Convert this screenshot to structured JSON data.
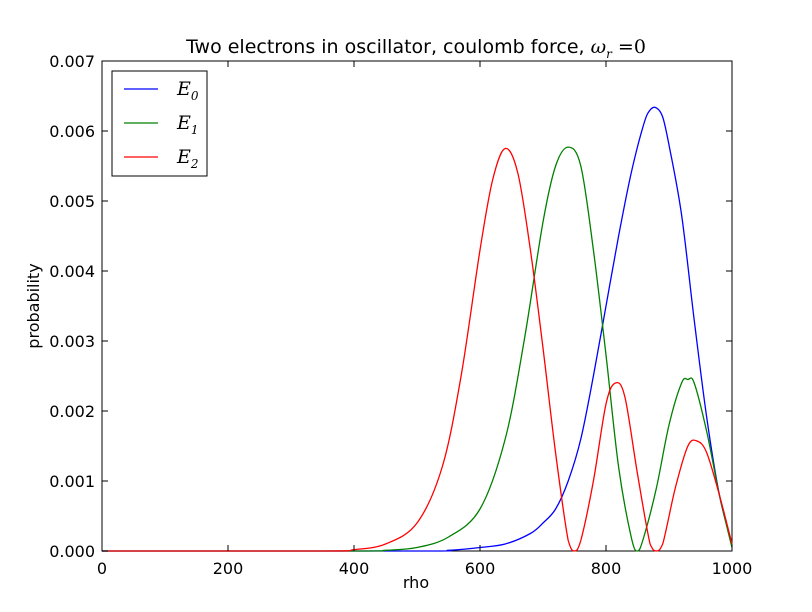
{
  "chart_data": {
    "type": "line",
    "title": "Two electrons in oscillator, coulomb force, ",
    "title_math": "ω",
    "title_math_sub": "r",
    "title_math_rest": " =0",
    "xlabel": "rho",
    "ylabel": "probability",
    "xlim": [
      0,
      1000
    ],
    "ylim": [
      0,
      0.007
    ],
    "xticks": [
      0,
      200,
      400,
      600,
      800,
      1000
    ],
    "xtick_labels": [
      "0",
      "200",
      "400",
      "600",
      "800",
      "1000"
    ],
    "yticks": [
      0,
      0.001,
      0.002,
      0.003,
      0.004,
      0.005,
      0.006,
      0.007
    ],
    "ytick_labels": [
      "0.000",
      "0.001",
      "0.002",
      "0.003",
      "0.004",
      "0.005",
      "0.006",
      "0.007"
    ],
    "grid": false,
    "legend_position": "top-left",
    "series": [
      {
        "name": "E",
        "sub": "0",
        "color": "#0000ff",
        "points": [
          [
            0,
            0
          ],
          [
            500,
            0
          ],
          [
            550,
            1e-05
          ],
          [
            580,
            3e-05
          ],
          [
            600,
            5e-05
          ],
          [
            640,
            0.0001
          ],
          [
            680,
            0.00025
          ],
          [
            700,
            0.0004
          ],
          [
            720,
            0.0006
          ],
          [
            740,
            0.001
          ],
          [
            760,
            0.0016
          ],
          [
            780,
            0.0025
          ],
          [
            800,
            0.0035
          ],
          [
            820,
            0.0045
          ],
          [
            840,
            0.0054
          ],
          [
            860,
            0.0061
          ],
          [
            870,
            0.0063
          ],
          [
            880,
            0.00633
          ],
          [
            890,
            0.0062
          ],
          [
            900,
            0.0058
          ],
          [
            920,
            0.0048
          ],
          [
            940,
            0.0033
          ],
          [
            960,
            0.0019
          ],
          [
            980,
            0.0008
          ],
          [
            1000,
            0.0001
          ]
        ]
      },
      {
        "name": "E",
        "sub": "1",
        "color": "#008000",
        "points": [
          [
            0,
            0
          ],
          [
            400,
            0
          ],
          [
            450,
            1e-05
          ],
          [
            500,
            5e-05
          ],
          [
            550,
            0.0002
          ],
          [
            600,
            0.0006
          ],
          [
            640,
            0.0016
          ],
          [
            670,
            0.003
          ],
          [
            700,
            0.0047
          ],
          [
            720,
            0.0055
          ],
          [
            740,
            0.00577
          ],
          [
            760,
            0.0055
          ],
          [
            780,
            0.0043
          ],
          [
            800,
            0.0028
          ],
          [
            820,
            0.0012
          ],
          [
            840,
            0.0002
          ],
          [
            850,
            0
          ],
          [
            860,
            0.0002
          ],
          [
            880,
            0.0009
          ],
          [
            900,
            0.0018
          ],
          [
            920,
            0.0024
          ],
          [
            930,
            0.00245
          ],
          [
            940,
            0.0024
          ],
          [
            960,
            0.0017
          ],
          [
            980,
            0.0008
          ],
          [
            1000,
            5e-05
          ]
        ]
      },
      {
        "name": "E",
        "sub": "2",
        "color": "#ff0000",
        "points": [
          [
            0,
            0
          ],
          [
            350,
            0
          ],
          [
            400,
            2e-05
          ],
          [
            450,
            0.0001
          ],
          [
            500,
            0.0004
          ],
          [
            540,
            0.0012
          ],
          [
            570,
            0.0025
          ],
          [
            600,
            0.0043
          ],
          [
            620,
            0.0053
          ],
          [
            640,
            0.00575
          ],
          [
            660,
            0.0054
          ],
          [
            680,
            0.0043
          ],
          [
            700,
            0.0029
          ],
          [
            720,
            0.0014
          ],
          [
            740,
            0.00015
          ],
          [
            750,
            0
          ],
          [
            760,
            0.00015
          ],
          [
            780,
            0.001
          ],
          [
            800,
            0.0021
          ],
          [
            815,
            0.0024
          ],
          [
            830,
            0.0022
          ],
          [
            850,
            0.0011
          ],
          [
            870,
            0.0001
          ],
          [
            880,
            0
          ],
          [
            890,
            0.0001
          ],
          [
            910,
            0.0009
          ],
          [
            930,
            0.0015
          ],
          [
            945,
            0.00157
          ],
          [
            960,
            0.0014
          ],
          [
            980,
            0.0008
          ],
          [
            1000,
            0.0001
          ]
        ]
      }
    ]
  }
}
